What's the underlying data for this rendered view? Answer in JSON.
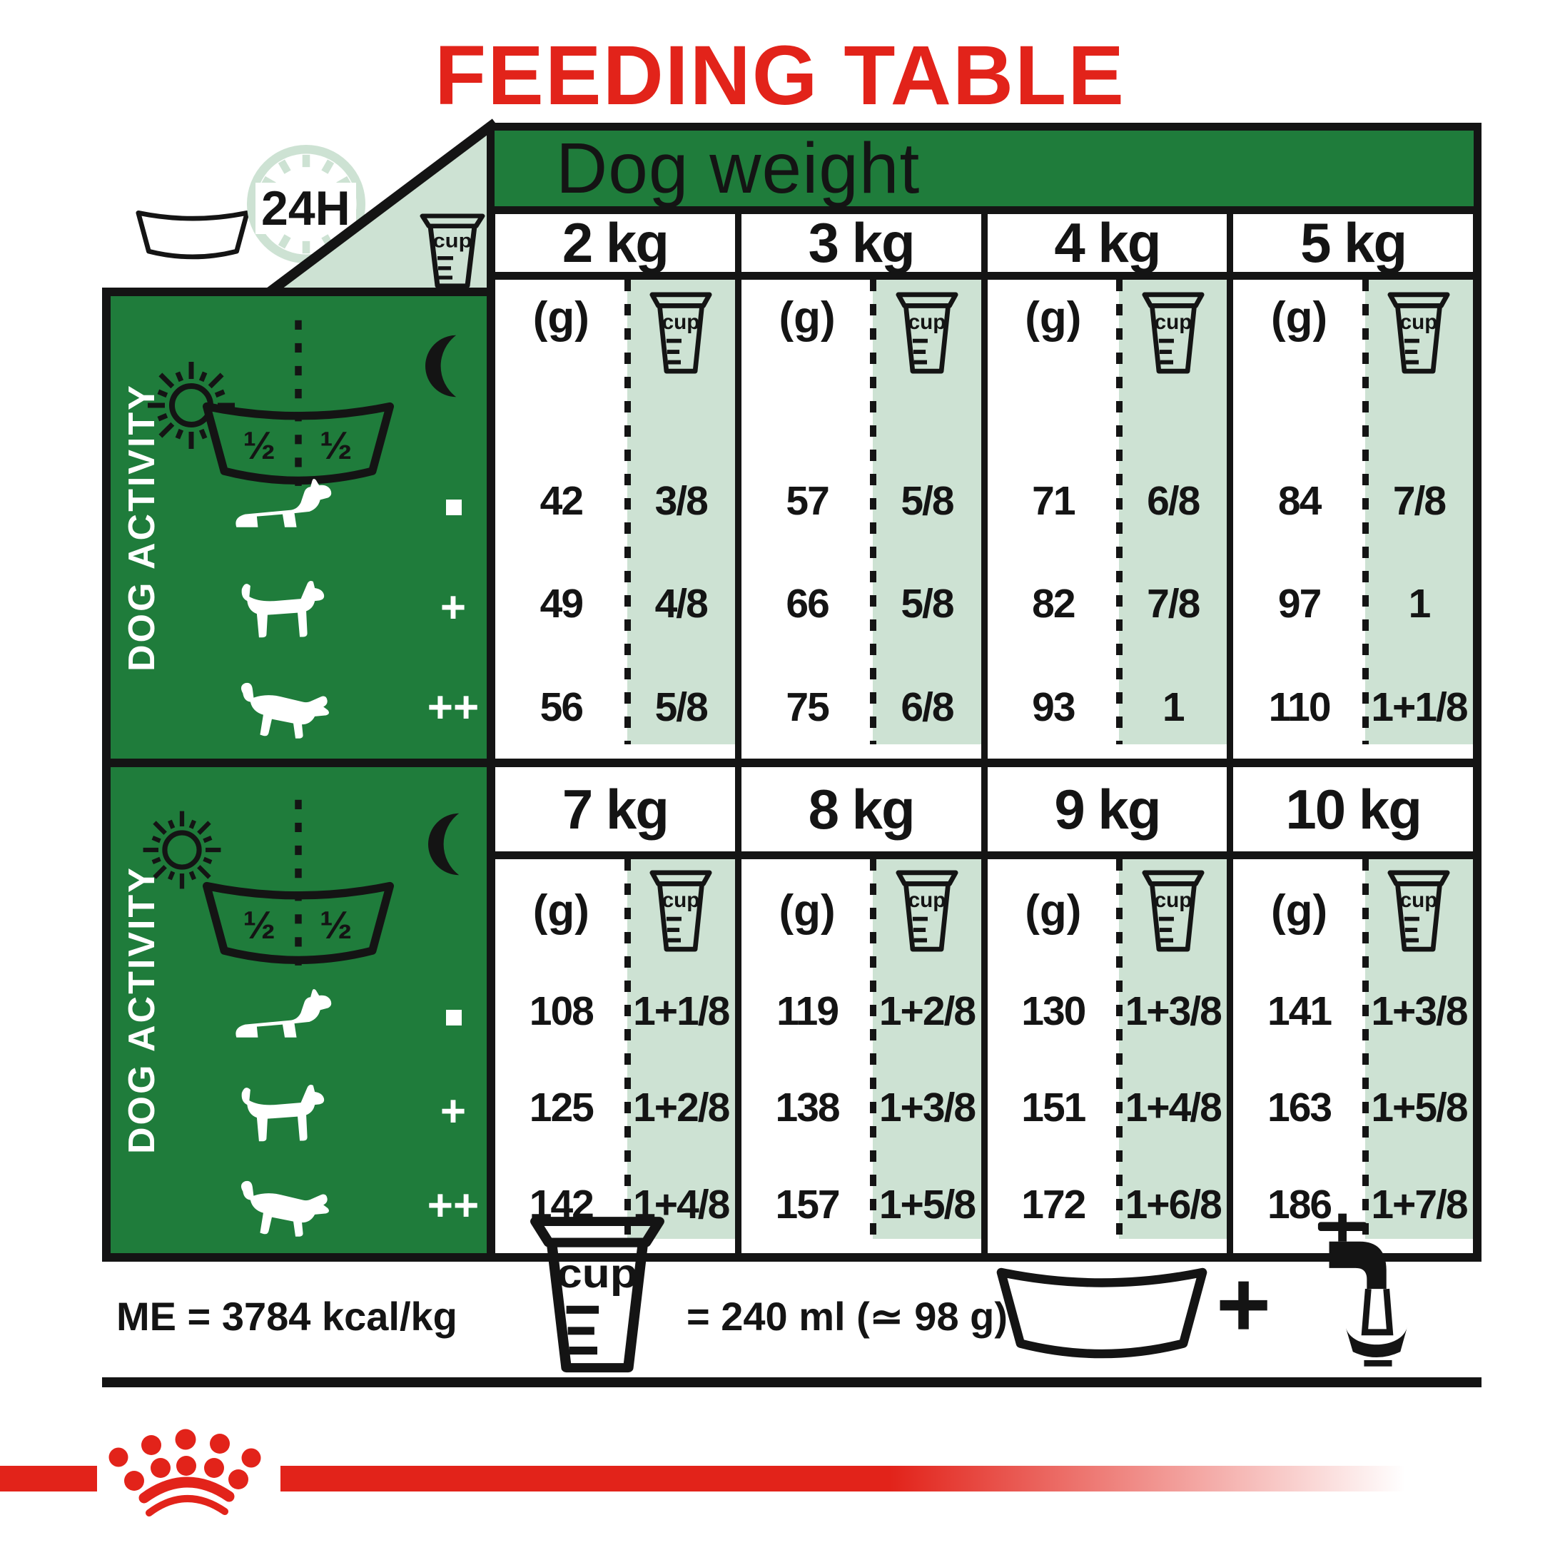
{
  "title": "FEEDING TABLE",
  "header": {
    "dog_weight_label": "Dog weight",
    "clock_label": "24H",
    "cup_label": "cup"
  },
  "sidebar": {
    "activity_label": "DOG ACTIVITY",
    "bowl_half_left": "½",
    "bowl_half_right": "½"
  },
  "units": {
    "grams": "(g)"
  },
  "chart_data": {
    "type": "table",
    "title": "FEEDING TABLE",
    "column_group_label": "Dog weight",
    "row_group_label": "DOG ACTIVITY",
    "activity_levels": [
      "-",
      "+",
      "++"
    ],
    "units": [
      "(g)",
      "cup"
    ],
    "tables": [
      {
        "weights": [
          "2 kg",
          "3 kg",
          "4 kg",
          "5 kg"
        ],
        "rows": [
          {
            "activity": "-",
            "cells": [
              {
                "g": "42",
                "cup": "3/8"
              },
              {
                "g": "57",
                "cup": "5/8"
              },
              {
                "g": "71",
                "cup": "6/8"
              },
              {
                "g": "84",
                "cup": "7/8"
              }
            ]
          },
          {
            "activity": "+",
            "cells": [
              {
                "g": "49",
                "cup": "4/8"
              },
              {
                "g": "66",
                "cup": "5/8"
              },
              {
                "g": "82",
                "cup": "7/8"
              },
              {
                "g": "97",
                "cup": "1"
              }
            ]
          },
          {
            "activity": "++",
            "cells": [
              {
                "g": "56",
                "cup": "5/8"
              },
              {
                "g": "75",
                "cup": "6/8"
              },
              {
                "g": "93",
                "cup": "1"
              },
              {
                "g": "110",
                "cup": "1+1/8"
              }
            ]
          }
        ]
      },
      {
        "weights": [
          "7 kg",
          "8 kg",
          "9 kg",
          "10 kg"
        ],
        "rows": [
          {
            "activity": "-",
            "cells": [
              {
                "g": "108",
                "cup": "1+1/8"
              },
              {
                "g": "119",
                "cup": "1+2/8"
              },
              {
                "g": "130",
                "cup": "1+3/8"
              },
              {
                "g": "141",
                "cup": "1+3/8"
              }
            ]
          },
          {
            "activity": "+",
            "cells": [
              {
                "g": "125",
                "cup": "1+2/8"
              },
              {
                "g": "138",
                "cup": "1+3/8"
              },
              {
                "g": "151",
                "cup": "1+4/8"
              },
              {
                "g": "163",
                "cup": "1+5/8"
              }
            ]
          },
          {
            "activity": "++",
            "cells": [
              {
                "g": "142",
                "cup": "1+4/8"
              },
              {
                "g": "157",
                "cup": "1+5/8"
              },
              {
                "g": "172",
                "cup": "1+6/8"
              },
              {
                "g": "186",
                "cup": "1+7/8"
              }
            ]
          }
        ]
      }
    ]
  },
  "footer": {
    "me_text": "ME = 3784 kcal/kg",
    "cup_equiv": "= 240 ml (≃ 98 g)",
    "plus_sign": "+"
  },
  "colors": {
    "brand_red": "#e2231a",
    "panel_green": "#1f7c3b",
    "light_green": "#cde2d3",
    "ink": "#141414"
  }
}
